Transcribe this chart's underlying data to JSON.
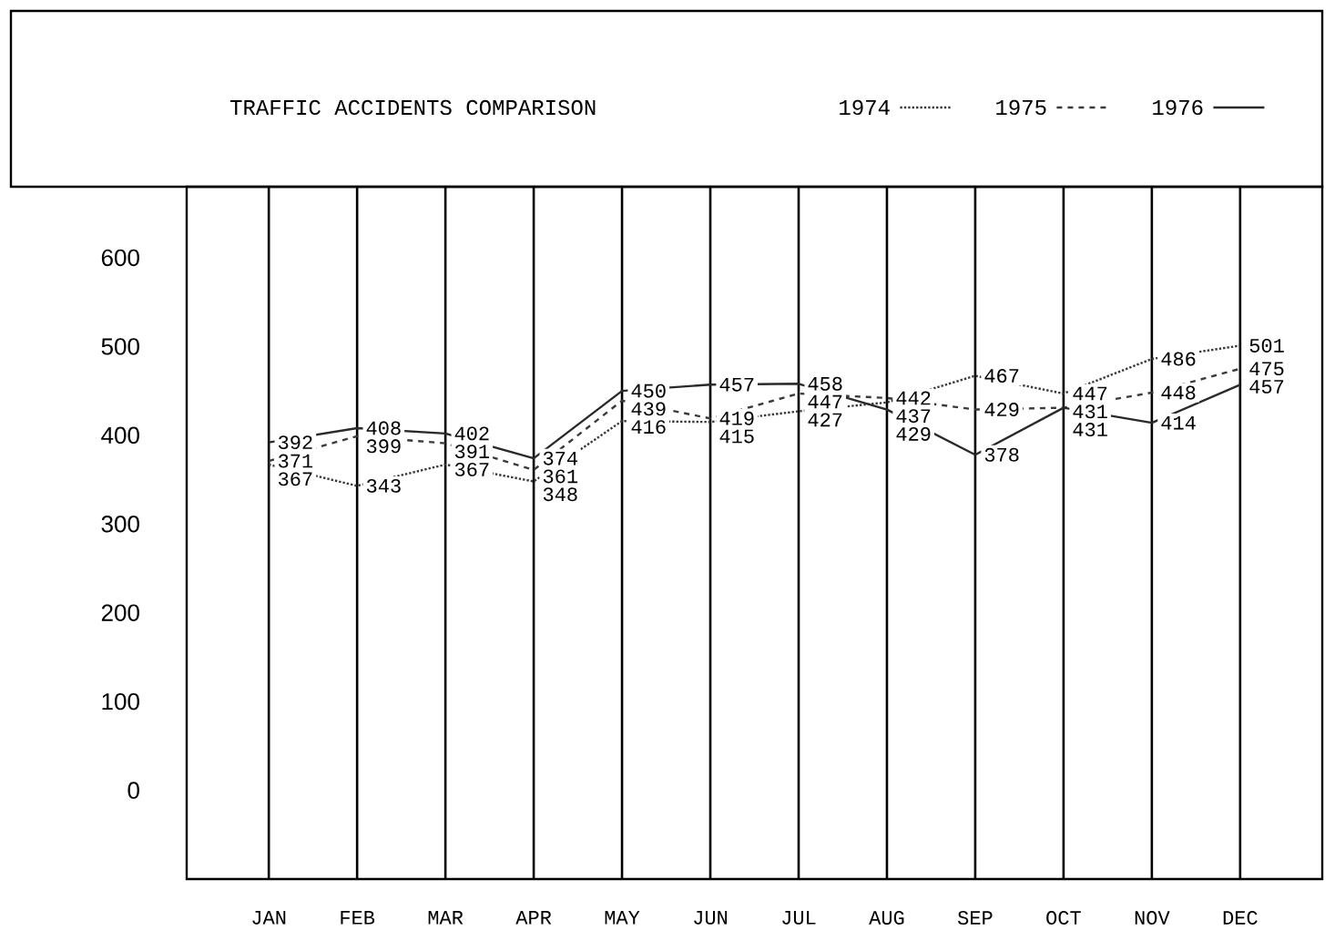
{
  "chart_data": {
    "type": "line",
    "title": "TRAFFIC   ACCIDENTS   COMPARISON",
    "categories": [
      "JAN",
      "FEB",
      "MAR",
      "APR",
      "MAY",
      "JUN",
      "JUL",
      "AUG",
      "SEP",
      "OCT",
      "NOV",
      "DEC"
    ],
    "series": [
      {
        "name": "1974",
        "color": "#3a3a3a",
        "line_style": "dotted",
        "values": [
          367,
          343,
          367,
          348,
          416,
          415,
          427,
          437,
          467,
          447,
          486,
          501
        ]
      },
      {
        "name": "1975",
        "color": "#3a3a3a",
        "line_style": "dashed",
        "values": [
          371,
          399,
          391,
          361,
          439,
          419,
          447,
          442,
          429,
          431,
          448,
          475
        ]
      },
      {
        "name": "1976",
        "color": "#2a2a2a",
        "line_style": "solid",
        "values": [
          392,
          408,
          402,
          374,
          450,
          457,
          458,
          429,
          378,
          431,
          414,
          457
        ]
      }
    ],
    "ylim": [
      -100,
      680
    ],
    "yticks": [
      0,
      100,
      200,
      300,
      400,
      500,
      600
    ],
    "grid": "x",
    "legend": "top right",
    "data_labels": true
  }
}
